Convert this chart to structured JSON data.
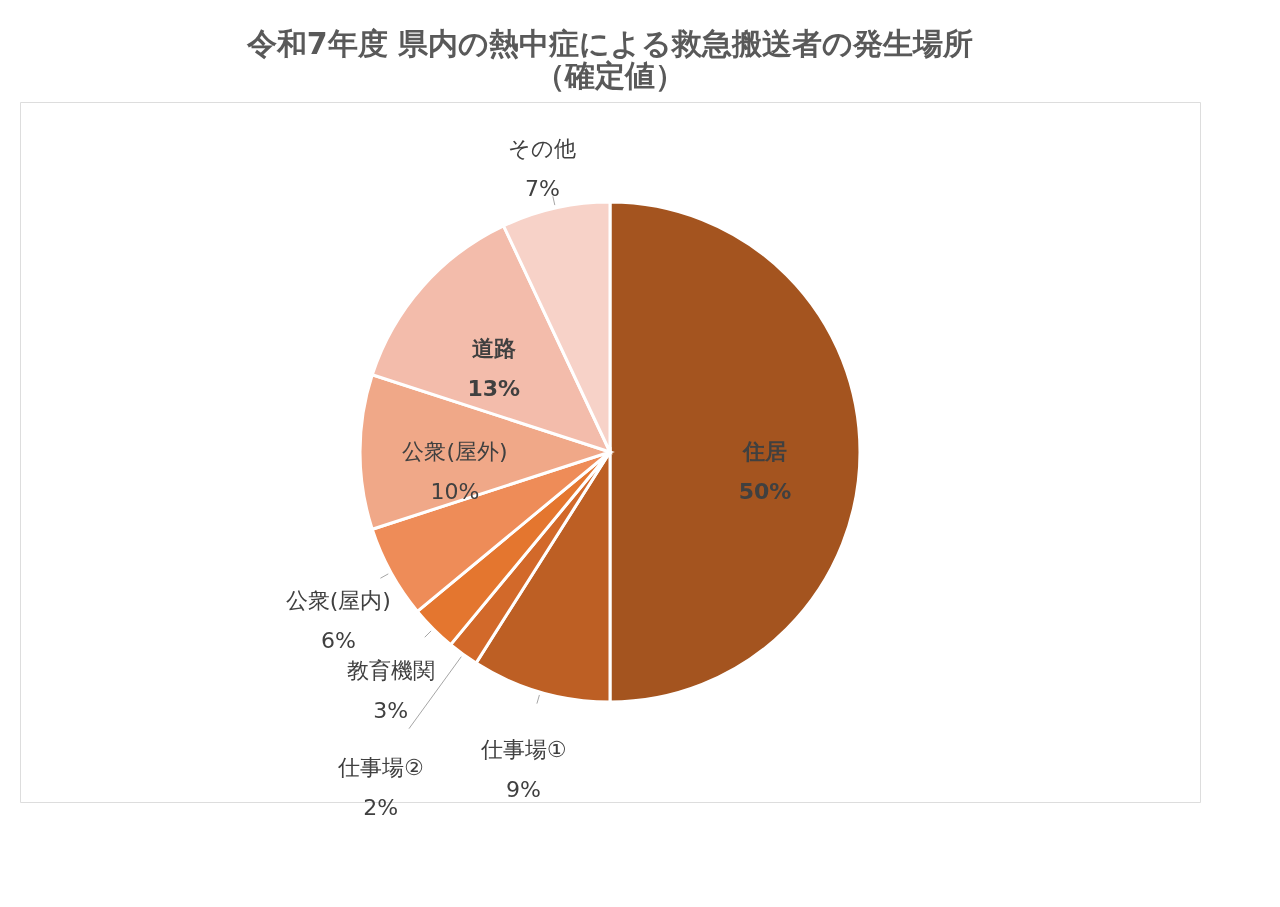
{
  "chart_data": {
    "type": "pie",
    "title": [
      "令和7年度 県内の熱中症による救急搬送者の発生場所",
      "（確定値）"
    ],
    "categories": [
      "住居",
      "仕事場①",
      "仕事場②",
      "教育機関",
      "公衆(屋内)",
      "公衆(屋外)",
      "道路",
      "その他"
    ],
    "values": [
      50,
      9,
      2,
      3,
      6,
      10,
      13,
      7
    ],
    "value_labels": [
      "50%",
      "9%",
      "2%",
      "3%",
      "6%",
      "10%",
      "13%",
      "7%"
    ],
    "colors": [
      "#a4541f",
      "#bd5f24",
      "#d2692a",
      "#e4762f",
      "#ee8c58",
      "#f0a888",
      "#f3bcab",
      "#f7d2c8"
    ],
    "legend": false
  }
}
